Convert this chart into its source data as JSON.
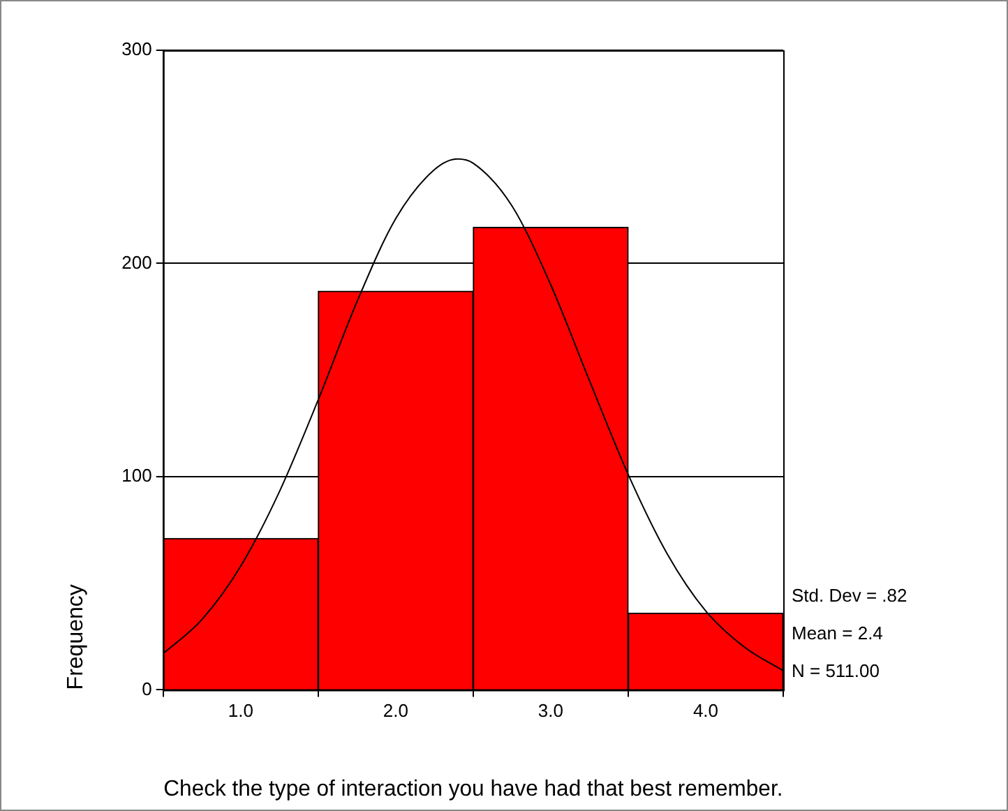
{
  "chart_data": {
    "type": "histogram",
    "xlabel": "Check the type of interaction you have had that best remember.",
    "ylabel": "Frequency",
    "bins": [
      0.5,
      1.5,
      2.5,
      3.5,
      4.5
    ],
    "values": [
      71,
      187,
      217,
      36
    ],
    "color": "#ff0000",
    "series": [
      {
        "type": "line",
        "color": "#000000",
        "x": [
          0.5,
          0.75,
          1.0,
          1.25,
          1.5,
          1.75,
          2.0,
          2.25,
          2.4,
          2.5,
          2.75,
          3.0,
          3.25,
          3.5,
          3.75,
          4.0,
          4.25,
          4.5
        ],
        "values": [
          17,
          33,
          58,
          93,
          136,
          182,
          221,
          244,
          249,
          247,
          227,
          190,
          145,
          101,
          64,
          37,
          20,
          9
        ]
      }
    ],
    "xlim": [
      0.5,
      4.5
    ],
    "xticks": [
      {
        "value": 1,
        "label": "1.0"
      },
      {
        "value": 2,
        "label": "2.0"
      },
      {
        "value": 3,
        "label": "3.0"
      },
      {
        "value": 4,
        "label": "4.0"
      }
    ],
    "ylim": [
      0,
      300
    ],
    "yticks": [
      0,
      100,
      200,
      300
    ],
    "grid": "y",
    "legend": false,
    "marker": "none",
    "annotations": [
      "Std. Dev = .82",
      "Mean = 2.4",
      "N = 511.00"
    ]
  }
}
